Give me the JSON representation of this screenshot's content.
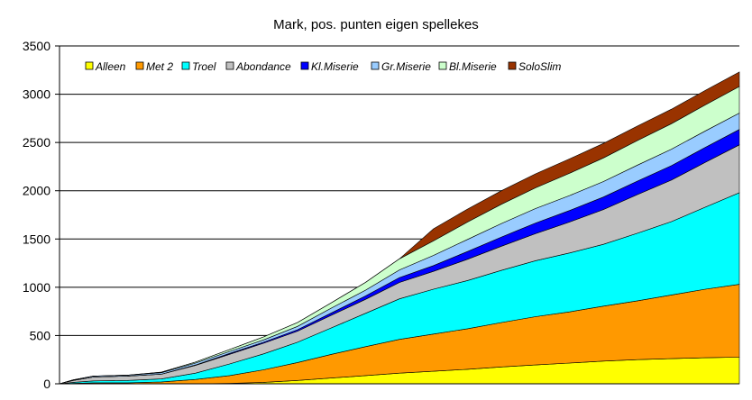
{
  "chart_data": {
    "type": "area",
    "stacked": true,
    "title": "Mark, pos. punten eigen spellekes",
    "xlabel": "",
    "ylabel": "",
    "ylim": [
      0,
      3500
    ],
    "yticks": [
      0,
      500,
      1000,
      1500,
      2000,
      2500,
      3000,
      3500
    ],
    "grid": true,
    "legend_position": "top",
    "x": [
      0,
      2,
      5,
      10,
      15,
      20,
      25,
      30,
      35,
      40,
      45,
      50,
      55,
      60,
      65,
      70,
      75,
      80,
      85,
      90,
      95,
      100
    ],
    "series": [
      {
        "name": "Alleen",
        "color": "#ffff00",
        "values": [
          0,
          0,
          0,
          0,
          0,
          0,
          5,
          15,
          35,
          60,
          85,
          110,
          130,
          150,
          175,
          195,
          215,
          235,
          250,
          260,
          270,
          275
        ]
      },
      {
        "name": "Met 2",
        "color": "#ff9900",
        "values": [
          0,
          5,
          10,
          10,
          20,
          45,
          80,
          130,
          185,
          245,
          300,
          350,
          385,
          420,
          460,
          500,
          530,
          570,
          610,
          660,
          710,
          755
        ]
      },
      {
        "name": "Troel",
        "color": "#00ffff",
        "values": [
          0,
          10,
          20,
          25,
          30,
          65,
          120,
          165,
          210,
          275,
          345,
          420,
          465,
          500,
          540,
          580,
          610,
          640,
          700,
          760,
          850,
          950
        ]
      },
      {
        "name": "Abondance",
        "color": "#c0c0c0",
        "values": [
          0,
          20,
          40,
          45,
          50,
          80,
          100,
          110,
          115,
          130,
          145,
          170,
          185,
          220,
          250,
          280,
          320,
          360,
          400,
          430,
          465,
          495
        ]
      },
      {
        "name": "Kl.Miserie",
        "color": "#0000ff",
        "values": [
          0,
          0,
          0,
          0,
          0,
          5,
          10,
          10,
          15,
          25,
          35,
          50,
          60,
          80,
          95,
          110,
          120,
          130,
          140,
          150,
          155,
          160
        ]
      },
      {
        "name": "Gr.Miserie",
        "color": "#99ccff",
        "values": [
          0,
          5,
          10,
          10,
          15,
          20,
          20,
          25,
          35,
          50,
          60,
          80,
          105,
          125,
          140,
          150,
          155,
          160,
          165,
          170,
          170,
          170
        ]
      },
      {
        "name": "Bl.Miserie",
        "color": "#ccffcc",
        "values": [
          0,
          0,
          0,
          0,
          5,
          10,
          20,
          30,
          40,
          55,
          80,
          115,
          150,
          180,
          200,
          215,
          230,
          245,
          255,
          265,
          270,
          275
        ]
      },
      {
        "name": "SoloSlim",
        "color": "#993300",
        "values": [
          0,
          0,
          0,
          0,
          0,
          0,
          0,
          0,
          0,
          0,
          0,
          0,
          125,
          135,
          140,
          145,
          150,
          150,
          150,
          150,
          150,
          150
        ]
      }
    ]
  }
}
